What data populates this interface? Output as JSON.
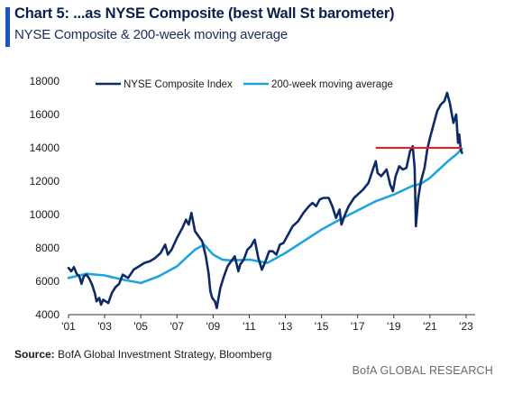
{
  "header": {
    "title": "Chart 5: ...as NYSE Composite (best Wall St barometer)",
    "subtitle": "NYSE Composite & 200-week moving average"
  },
  "footer": {
    "source_label": "Source:",
    "source_text": "BofA Global Investment Strategy, Bloomberg",
    "brand": "BofA GLOBAL RESEARCH"
  },
  "colors": {
    "index": "#0d2a66",
    "moving_average": "#1fa5dd",
    "reference_line": "#ee1c1c",
    "accent": "#1a56c4"
  },
  "chart_data": {
    "type": "line",
    "title": "",
    "xlabel": "",
    "ylabel": "",
    "xlim": [
      2001,
      2023.5
    ],
    "ylim": [
      4000,
      18000
    ],
    "x_ticks": [
      2001,
      2003,
      2005,
      2007,
      2009,
      2011,
      2013,
      2015,
      2017,
      2019,
      2021,
      2023
    ],
    "x_tick_labels": [
      "'01",
      "'03",
      "'05",
      "'07",
      "'09",
      "'11",
      "'13",
      "'15",
      "'17",
      "'19",
      "'21",
      "'23"
    ],
    "y_ticks": [
      4000,
      6000,
      8000,
      10000,
      12000,
      14000,
      16000,
      18000
    ],
    "y_tick_labels": [
      "4000",
      "6000",
      "8000",
      "10000",
      "12000",
      "14000",
      "16000",
      "18000"
    ],
    "legend_position": "top",
    "series": [
      {
        "name": "NYSE Composite Index",
        "x": [
          2001.0,
          2001.15,
          2001.3,
          2001.45,
          2001.6,
          2001.72,
          2001.85,
          2002.0,
          2002.15,
          2002.3,
          2002.45,
          2002.55,
          2002.7,
          2002.8,
          2002.92,
          2003.05,
          2003.2,
          2003.4,
          2003.6,
          2003.8,
          2004.0,
          2004.3,
          2004.6,
          2004.9,
          2005.2,
          2005.5,
          2005.8,
          2006.1,
          2006.35,
          2006.5,
          2006.7,
          2007.0,
          2007.3,
          2007.5,
          2007.65,
          2007.8,
          2008.0,
          2008.2,
          2008.4,
          2008.6,
          2008.75,
          2008.85,
          2008.95,
          2009.1,
          2009.2,
          2009.4,
          2009.6,
          2009.8,
          2010.0,
          2010.2,
          2010.4,
          2010.5,
          2010.7,
          2010.9,
          2011.1,
          2011.3,
          2011.5,
          2011.7,
          2011.9,
          2012.1,
          2012.3,
          2012.5,
          2012.7,
          2012.9,
          2013.1,
          2013.4,
          2013.7,
          2014.0,
          2014.3,
          2014.5,
          2014.7,
          2014.9,
          2015.1,
          2015.4,
          2015.6,
          2015.8,
          2016.0,
          2016.1,
          2016.3,
          2016.5,
          2016.8,
          2017.0,
          2017.3,
          2017.6,
          2017.9,
          2018.0,
          2018.1,
          2018.3,
          2018.6,
          2018.8,
          2018.95,
          2019.1,
          2019.3,
          2019.5,
          2019.7,
          2019.9,
          2020.05,
          2020.15,
          2020.22,
          2020.35,
          2020.5,
          2020.7,
          2020.85,
          2021.0,
          2021.2,
          2021.4,
          2021.6,
          2021.8,
          2021.95,
          2022.1,
          2022.3,
          2022.45,
          2022.55,
          2022.62,
          2022.7,
          2022.77
        ],
        "values": [
          6800,
          6600,
          6850,
          6450,
          6300,
          5850,
          6300,
          6400,
          6150,
          5800,
          5300,
          4800,
          5000,
          4600,
          4900,
          4800,
          4700,
          5300,
          5650,
          5850,
          6400,
          6200,
          6700,
          6900,
          7100,
          7200,
          7400,
          7700,
          8200,
          7600,
          7900,
          8600,
          9200,
          9700,
          9400,
          10100,
          9000,
          8700,
          8400,
          7500,
          6500,
          5400,
          5000,
          4800,
          4400,
          5600,
          6300,
          6900,
          7200,
          7500,
          6600,
          7000,
          7300,
          7900,
          8100,
          8500,
          7400,
          6700,
          7200,
          7800,
          7800,
          7600,
          8200,
          8300,
          8700,
          9300,
          9600,
          10100,
          10500,
          10700,
          10500,
          10900,
          11000,
          11000,
          10500,
          9800,
          10300,
          9400,
          10000,
          10500,
          11000,
          11200,
          11500,
          11900,
          12900,
          13200,
          12500,
          12300,
          12700,
          11800,
          11400,
          12300,
          12900,
          12700,
          12800,
          13800,
          14100,
          12800,
          9300,
          11000,
          12000,
          12800,
          13900,
          14600,
          15400,
          16200,
          16600,
          16800,
          17300,
          16700,
          15500,
          16000,
          14300,
          14800,
          13900,
          13700
        ]
      },
      {
        "name": "200-week moving average",
        "x": [
          2001.0,
          2002.0,
          2003.0,
          2004.0,
          2005.0,
          2006.0,
          2007.0,
          2007.5,
          2008.0,
          2008.5,
          2009.0,
          2009.5,
          2010.0,
          2011.0,
          2012.0,
          2013.0,
          2014.0,
          2015.0,
          2016.0,
          2017.0,
          2018.0,
          2019.0,
          2020.0,
          2020.5,
          2021.0,
          2021.5,
          2022.0,
          2022.5,
          2022.77
        ],
        "values": [
          6200,
          6450,
          6350,
          6100,
          5900,
          6300,
          6900,
          7400,
          7900,
          8200,
          7600,
          7300,
          7250,
          7300,
          7100,
          7700,
          8400,
          9100,
          9700,
          10250,
          10800,
          11200,
          11700,
          11850,
          12200,
          12700,
          13200,
          13650,
          13950
        ]
      }
    ],
    "reference_lines": [
      {
        "type": "horizontal",
        "y": 14000,
        "x_start": 2018.0,
        "x_end": 2022.75
      }
    ]
  }
}
